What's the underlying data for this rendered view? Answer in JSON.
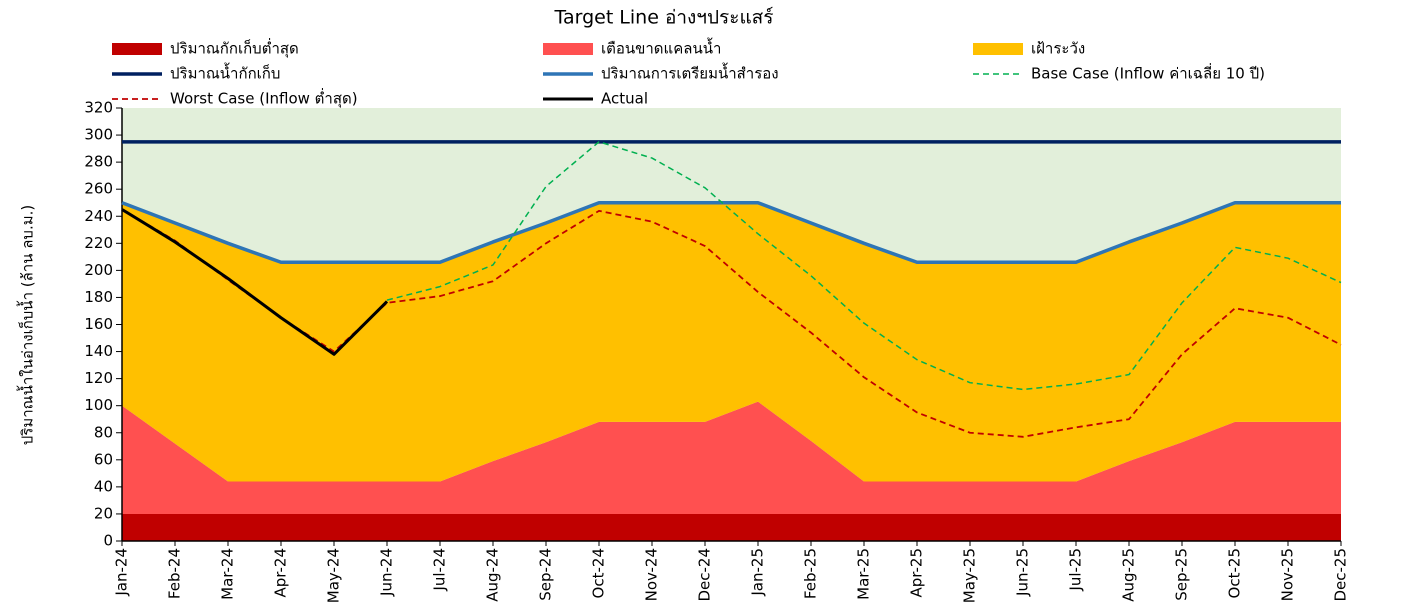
{
  "chart_data": {
    "type": "area",
    "title": "Target Line อ่างฯประแสร์",
    "y_label": "ปริมาณน้ำในอ่างเก็บน้ำ (ล้าน ลบ.ม.)",
    "categories": [
      "Jan-24",
      "Feb-24",
      "Mar-24",
      "Apr-24",
      "May-24",
      "Jun-24",
      "Jul-24",
      "Aug-24",
      "Sep-24",
      "Oct-24",
      "Nov-24",
      "Dec-24",
      "Jan-25",
      "Feb-25",
      "Mar-25",
      "Apr-25",
      "May-25",
      "Jun-25",
      "Jul-25",
      "Aug-25",
      "Sep-25",
      "Oct-25",
      "Nov-25",
      "Dec-25"
    ],
    "ylim": [
      0,
      320
    ],
    "yticks": [
      0,
      20,
      40,
      60,
      80,
      100,
      120,
      140,
      160,
      180,
      200,
      220,
      240,
      260,
      280,
      300,
      320
    ],
    "background": "#e2efda",
    "series": [
      {
        "name": "ปริมาณกักเก็บต่ำสุด",
        "kind": "area",
        "color": "#c00000",
        "values": [
          20,
          20,
          20,
          20,
          20,
          20,
          20,
          20,
          20,
          20,
          20,
          20,
          20,
          20,
          20,
          20,
          20,
          20,
          20,
          20,
          20,
          20,
          20,
          20
        ]
      },
      {
        "name": "เตือนขาดแคลนน้ำ",
        "kind": "area",
        "color": "#ff5050",
        "values": [
          80,
          52,
          24,
          24,
          24,
          24,
          24,
          39,
          53,
          68,
          68,
          68,
          83,
          54,
          24,
          24,
          24,
          24,
          24,
          39,
          53,
          68,
          68,
          68
        ]
      },
      {
        "name": "เฝ้าระวัง",
        "kind": "area",
        "color": "#ffc000",
        "values": [
          150,
          163,
          176,
          162,
          162,
          162,
          162,
          162,
          162,
          162,
          162,
          162,
          147,
          161,
          176,
          162,
          162,
          162,
          162,
          162,
          162,
          162,
          162,
          162
        ]
      },
      {
        "name": "ปริมาณน้ำกักเก็บ",
        "kind": "line",
        "color": "#002060",
        "width": 3.5,
        "values": [
          295,
          295,
          295,
          295,
          295,
          295,
          295,
          295,
          295,
          295,
          295,
          295,
          295,
          295,
          295,
          295,
          295,
          295,
          295,
          295,
          295,
          295,
          295,
          295
        ]
      },
      {
        "name": "ปริมาณการเตรียมน้ำสำรอง",
        "kind": "line",
        "color": "#2e75b6",
        "width": 3.5,
        "values": [
          250,
          235,
          220,
          206,
          206,
          206,
          206,
          221,
          235,
          250,
          250,
          250,
          250,
          235,
          220,
          206,
          206,
          206,
          206,
          221,
          235,
          250,
          250,
          250
        ]
      },
      {
        "name": "Base Case (Inflow ค่าเฉลี่ย 10 ปี)",
        "kind": "line",
        "dashed": true,
        "color": "#00b050",
        "width": 1.5,
        "values": [
          null,
          null,
          null,
          null,
          null,
          178,
          188,
          204,
          262,
          295,
          283,
          261,
          227,
          196,
          161,
          134,
          117,
          112,
          116,
          123,
          176,
          217,
          209,
          191
        ]
      },
      {
        "name": "Worst Case (Inflow ต่ำสุด)",
        "kind": "line",
        "dashed": true,
        "color": "#c00000",
        "width": 1.8,
        "values": [
          245,
          222,
          193,
          165,
          140,
          176,
          181,
          192,
          220,
          244,
          236,
          218,
          184,
          154,
          121,
          95,
          80,
          77,
          84,
          90,
          138,
          172,
          165,
          145
        ]
      },
      {
        "name": "Actual",
        "kind": "line",
        "color": "#000000",
        "width": 3,
        "values": [
          245,
          221,
          194,
          165,
          138,
          177,
          null,
          null,
          null,
          null,
          null,
          null,
          null,
          null,
          null,
          null,
          null,
          null,
          null,
          null,
          null,
          null,
          null,
          null
        ]
      }
    ]
  }
}
